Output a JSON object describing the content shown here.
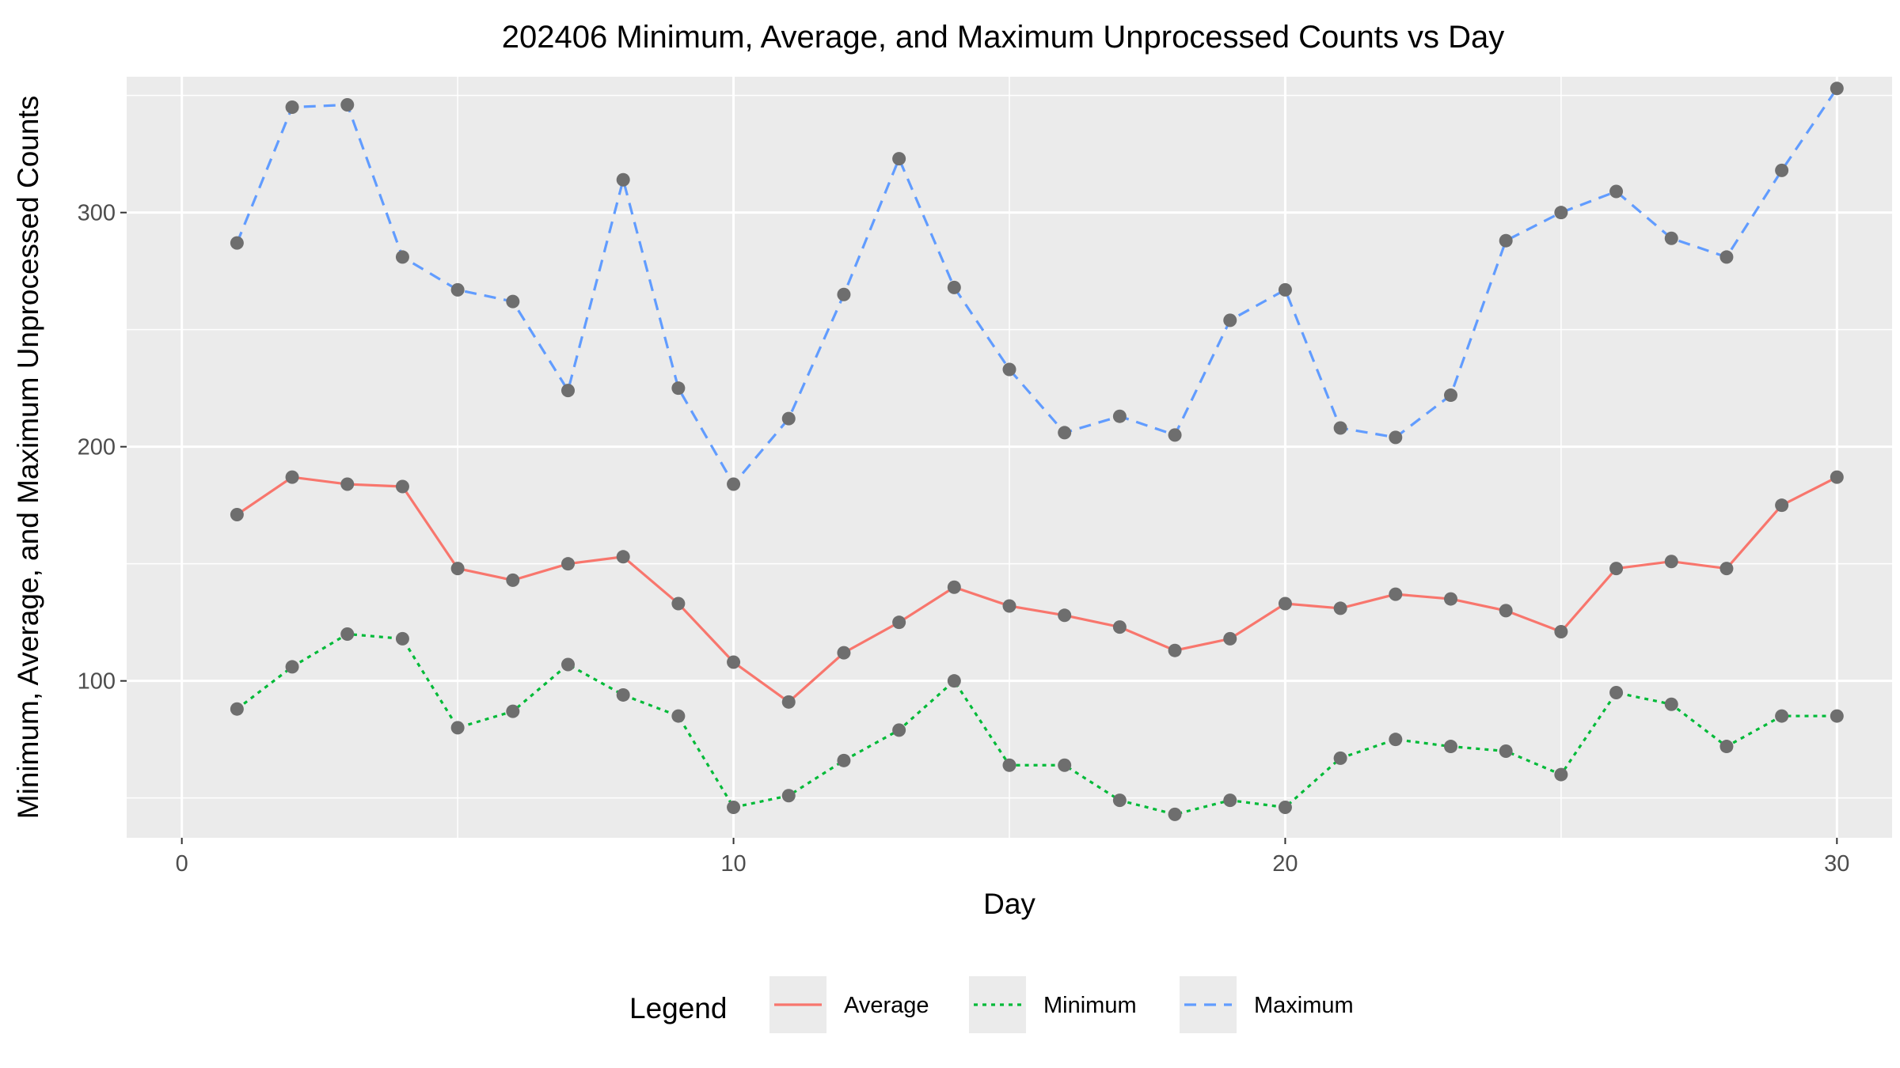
{
  "chart_data": {
    "type": "line",
    "title": "202406 Minimum, Average, and Maximum Unprocessed Counts vs Day",
    "xlabel": "Day",
    "ylabel": "Minimum, Average, and Maximum Unprocessed Counts",
    "xlim": [
      -1,
      31
    ],
    "ylim": [
      33,
      358
    ],
    "x_ticks": [
      0,
      10,
      20,
      30
    ],
    "x_minor_ticks": [
      5,
      15,
      25
    ],
    "y_ticks": [
      100,
      200,
      300
    ],
    "y_minor_ticks": [
      50,
      150,
      250,
      350
    ],
    "grid": true,
    "legend": {
      "title": "Legend",
      "position": "bottom",
      "entries": [
        "Average",
        "Minimum",
        "Maximum"
      ]
    },
    "x": [
      1,
      2,
      3,
      4,
      5,
      6,
      7,
      8,
      9,
      10,
      11,
      12,
      13,
      14,
      15,
      16,
      17,
      18,
      19,
      20,
      21,
      22,
      23,
      24,
      25,
      26,
      27,
      28,
      29,
      30
    ],
    "series": [
      {
        "name": "Average",
        "color": "#f8766d",
        "linestyle": "solid",
        "values": [
          171,
          187,
          184,
          183,
          148,
          143,
          150,
          153,
          133,
          108,
          91,
          112,
          125,
          140,
          132,
          128,
          123,
          113,
          118,
          133,
          131,
          137,
          135,
          130,
          121,
          148,
          151,
          148,
          175,
          187
        ]
      },
      {
        "name": "Minimum",
        "color": "#00ba38",
        "linestyle": "dotted",
        "values": [
          88,
          106,
          120,
          118,
          80,
          87,
          107,
          94,
          85,
          46,
          51,
          66,
          79,
          100,
          64,
          64,
          49,
          43,
          49,
          46,
          67,
          75,
          72,
          70,
          60,
          95,
          90,
          72,
          85,
          85
        ]
      },
      {
        "name": "Maximum",
        "color": "#619cff",
        "linestyle": "dashed",
        "values": [
          287,
          345,
          346,
          281,
          267,
          262,
          224,
          314,
          225,
          184,
          212,
          265,
          323,
          268,
          233,
          206,
          213,
          205,
          254,
          267,
          208,
          204,
          222,
          288,
          300,
          309,
          289,
          281,
          318,
          353
        ]
      }
    ],
    "point_color": "#6e6e6e",
    "panel_background": "#ebebeb"
  }
}
